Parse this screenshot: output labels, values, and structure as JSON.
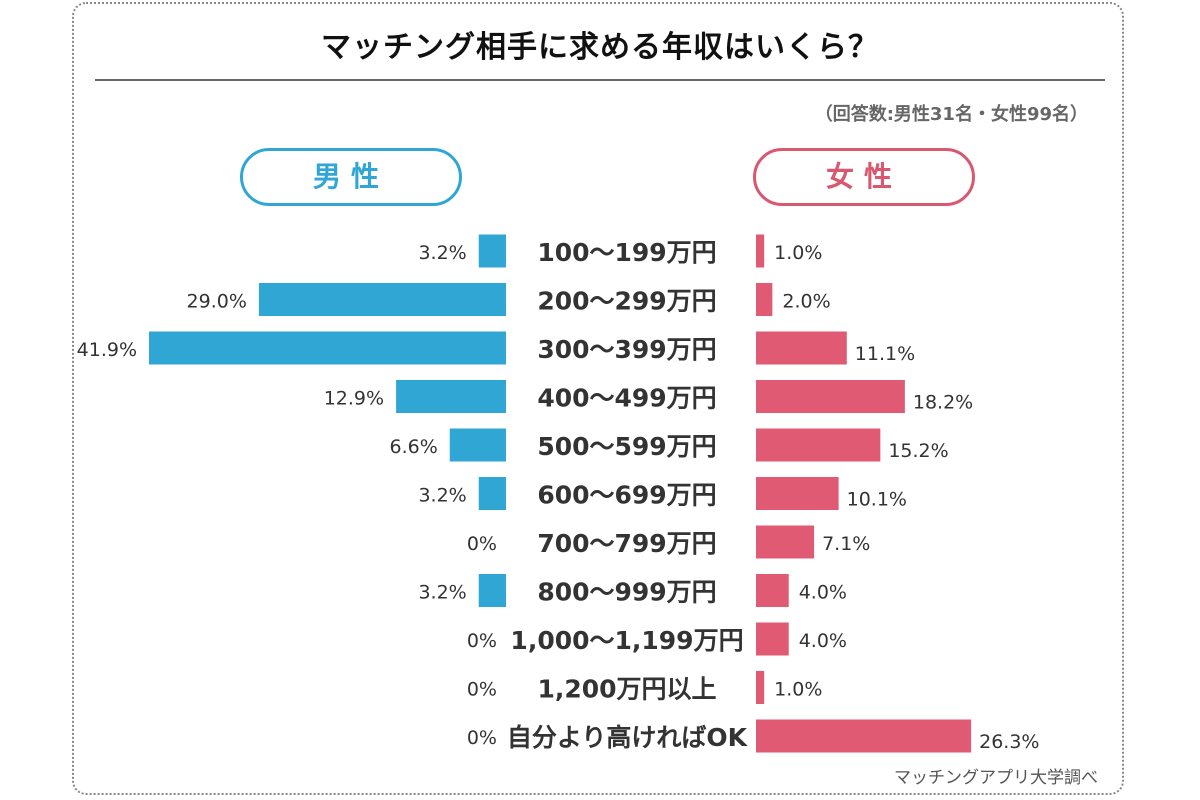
{
  "chart_data": {
    "type": "bar",
    "title": "マッチング相手に求める年収はいくら？",
    "subtitle": "（回答数:男性31名・女性99名）",
    "source": "マッチングアプリ大学調べ",
    "categories": [
      "100〜199万円",
      "200〜299万円",
      "300〜399万円",
      "400〜499万円",
      "500〜599万円",
      "600〜699万円",
      "700〜799万円",
      "800〜999万円",
      "1,000〜1,199万円",
      "1,200万円以上",
      "自分より高ければOK"
    ],
    "series": [
      {
        "name": "男性",
        "color": "#2fa6d3",
        "values": [
          3.2,
          29.0,
          41.9,
          12.9,
          6.6,
          3.2,
          0,
          3.2,
          0,
          0,
          0
        ],
        "labels": [
          "3.2%",
          "29.0%",
          "41.9%",
          "12.9%",
          "6.6%",
          "3.2%",
          "0%",
          "3.2%",
          "0%",
          "0%",
          "0%"
        ]
      },
      {
        "name": "女性",
        "color": "#e05a73",
        "values": [
          1.0,
          2.0,
          11.1,
          18.2,
          15.2,
          10.1,
          7.1,
          4.0,
          4.0,
          1.0,
          26.3
        ],
        "labels": [
          "1.0%",
          "2.0%",
          "11.1%",
          "18.2%",
          "15.2%",
          "10.1%",
          "7.1%",
          "4.0%",
          "4.0%",
          "1.0%",
          "26.3%"
        ]
      }
    ],
    "unit": "%",
    "layout": "butterfly"
  }
}
